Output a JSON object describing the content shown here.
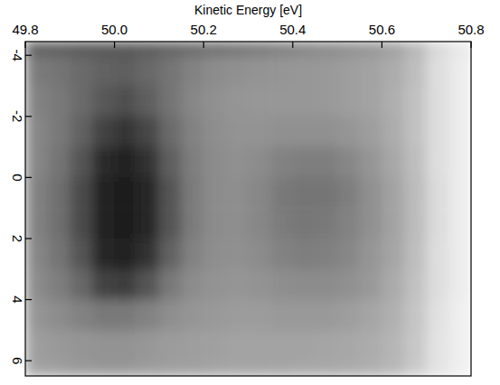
{
  "chart_data": {
    "type": "heatmap",
    "x_label": "Kinetic Energy [eV]",
    "xlim": [
      49.8,
      50.8
    ],
    "xticks": [
      49.8,
      {
        "value": 50,
        "label": "50.0"
      },
      50.2,
      50.4,
      50.6,
      50.8
    ],
    "ylim": [
      -4.45,
      6.5
    ],
    "yticks": [
      -4,
      -2,
      0,
      2,
      4,
      6
    ],
    "zlim": [
      0,
      100
    ],
    "x_edges": [
      49.8,
      49.85,
      49.9,
      49.95,
      50,
      50.05,
      50.1,
      50.15,
      50.2,
      50.25,
      50.3,
      50.35,
      50.4,
      50.45,
      50.5,
      50.55,
      50.6,
      50.65,
      50.7,
      50.75,
      50.8
    ],
    "y_edges": [
      -4.45,
      -4,
      -3,
      -2,
      -1,
      0,
      1,
      2,
      3,
      4,
      5,
      6,
      6.5
    ],
    "values": [
      [
        70,
        70,
        72,
        72,
        72,
        70,
        68,
        65,
        62,
        60,
        58,
        55,
        52,
        50,
        48,
        45,
        40,
        30,
        15,
        8
      ],
      [
        55,
        58,
        62,
        66,
        68,
        64,
        58,
        52,
        48,
        46,
        45,
        44,
        43,
        42,
        40,
        38,
        34,
        26,
        12,
        6
      ],
      [
        52,
        56,
        62,
        70,
        74,
        68,
        58,
        50,
        46,
        44,
        43,
        43,
        43,
        42,
        40,
        38,
        33,
        25,
        12,
        6
      ],
      [
        50,
        56,
        66,
        80,
        86,
        78,
        62,
        52,
        47,
        45,
        45,
        46,
        46,
        46,
        44,
        40,
        34,
        25,
        12,
        6
      ],
      [
        50,
        58,
        72,
        90,
        94,
        88,
        68,
        54,
        48,
        46,
        48,
        52,
        54,
        54,
        50,
        44,
        36,
        26,
        12,
        6
      ],
      [
        52,
        60,
        76,
        94,
        96,
        92,
        72,
        55,
        48,
        47,
        50,
        56,
        58,
        58,
        54,
        46,
        38,
        27,
        13,
        6
      ],
      [
        52,
        60,
        76,
        94,
        96,
        92,
        72,
        55,
        48,
        47,
        50,
        55,
        57,
        56,
        52,
        46,
        38,
        27,
        13,
        6
      ],
      [
        50,
        58,
        72,
        92,
        95,
        88,
        66,
        52,
        47,
        46,
        48,
        52,
        54,
        53,
        50,
        44,
        37,
        26,
        12,
        6
      ],
      [
        48,
        54,
        64,
        80,
        82,
        72,
        56,
        48,
        45,
        44,
        45,
        47,
        48,
        48,
        46,
        42,
        35,
        25,
        12,
        6
      ],
      [
        44,
        48,
        52,
        56,
        56,
        52,
        47,
        44,
        42,
        41,
        41,
        42,
        42,
        42,
        40,
        37,
        32,
        23,
        11,
        5
      ],
      [
        40,
        42,
        44,
        45,
        45,
        43,
        41,
        40,
        39,
        38,
        38,
        38,
        38,
        37,
        36,
        34,
        30,
        22,
        10,
        5
      ],
      [
        38,
        40,
        42,
        43,
        43,
        41,
        40,
        39,
        38,
        37,
        37,
        37,
        36,
        36,
        35,
        33,
        29,
        21,
        10,
        5
      ]
    ]
  }
}
